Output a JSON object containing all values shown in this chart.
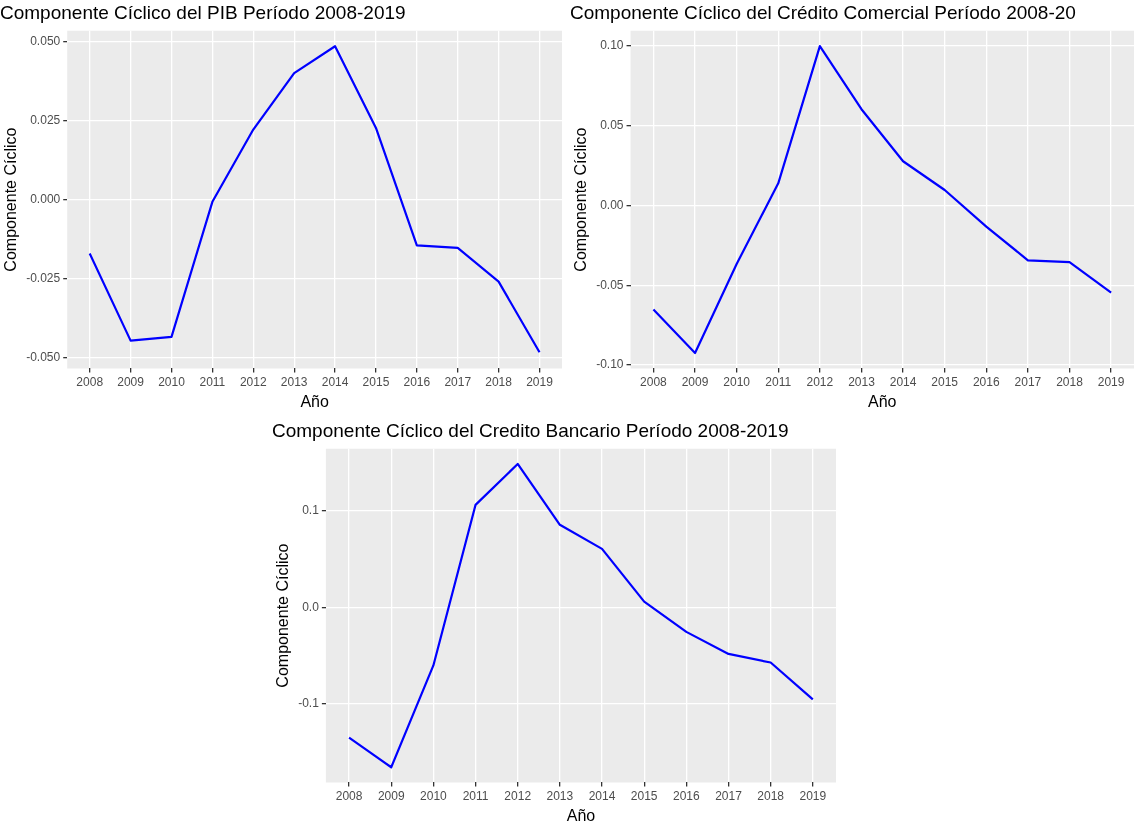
{
  "chart_data": [
    {
      "type": "line",
      "title": "Componente Cíclico del PIB Período 2008-2019",
      "xlabel": "Año",
      "ylabel": "Componente Cíclico",
      "x": [
        2008,
        2009,
        2010,
        2011,
        2012,
        2013,
        2014,
        2015,
        2016,
        2017,
        2018,
        2019
      ],
      "series": [
        {
          "color": "#0000ff",
          "values": [
            -0.0171,
            -0.0447,
            -0.0435,
            -0.0007,
            0.0222,
            0.0401,
            0.0486,
            0.0227,
            -0.0145,
            -0.0153,
            -0.026,
            -0.0484
          ]
        }
      ],
      "xlim": [
        2007.45,
        2019.55
      ],
      "xticks": [
        2008,
        2009,
        2010,
        2011,
        2012,
        2013,
        2014,
        2015,
        2016,
        2017,
        2018,
        2019
      ],
      "ylim": [
        -0.0535,
        0.0535
      ],
      "yticks": [
        {
          "value": -0.05,
          "label": "-0.050"
        },
        {
          "value": -0.025,
          "label": "-0.025"
        },
        {
          "value": 0,
          "label": "0.000"
        },
        {
          "value": 0.025,
          "label": "0.025"
        },
        {
          "value": 0.05,
          "label": "0.050"
        }
      ],
      "grid": true,
      "marker": "none"
    },
    {
      "type": "line",
      "title": "Componente Cíclico del Crédito Comercial Período 2008-20",
      "xlabel": "Año",
      "ylabel": "Componente Cíclico",
      "x": [
        2008,
        2009,
        2010,
        2011,
        2012,
        2013,
        2014,
        2015,
        2016,
        2017,
        2018,
        2019
      ],
      "series": [
        {
          "color": "#0000ff",
          "values": [
            -0.0652,
            -0.0925,
            -0.0367,
            0.0138,
            0.0997,
            0.0602,
            0.0276,
            0.0096,
            -0.0133,
            -0.0344,
            -0.0356,
            -0.0547
          ]
        }
      ],
      "xlim": [
        2007.45,
        2019.55
      ],
      "xticks": [
        2008,
        2009,
        2010,
        2011,
        2012,
        2013,
        2014,
        2015,
        2016,
        2017,
        2018,
        2019
      ],
      "ylim": [
        -0.1021,
        0.1093
      ],
      "yticks": [
        {
          "value": -0.1,
          "label": "-0.10"
        },
        {
          "value": -0.05,
          "label": "-0.05"
        },
        {
          "value": 0,
          "label": "0.00"
        },
        {
          "value": 0.05,
          "label": "0.05"
        },
        {
          "value": 0.1,
          "label": "0.10"
        }
      ],
      "grid": true,
      "marker": "none"
    },
    {
      "type": "line",
      "title": "Componente Cíclico del Credito Bancario Período 2008-2019",
      "xlabel": "Año",
      "ylabel": "Componente Cíclico",
      "x": [
        2008,
        2009,
        2010,
        2011,
        2012,
        2013,
        2014,
        2015,
        2016,
        2017,
        2018,
        2019
      ],
      "series": [
        {
          "color": "#0000ff",
          "values": [
            -0.1353,
            -0.166,
            -0.0603,
            0.1063,
            0.1488,
            0.0856,
            0.0606,
            0.0059,
            -0.0255,
            -0.0484,
            -0.0573,
            -0.0956
          ]
        }
      ],
      "xlim": [
        2007.45,
        2019.55
      ],
      "xticks": [
        2008,
        2009,
        2010,
        2011,
        2012,
        2013,
        2014,
        2015,
        2016,
        2017,
        2018,
        2019
      ],
      "ylim": [
        -0.1817,
        0.1645
      ],
      "yticks": [
        {
          "value": -0.1,
          "label": "-0.1"
        },
        {
          "value": 0,
          "label": "0.0"
        },
        {
          "value": 0.1,
          "label": "0.1"
        }
      ],
      "grid": true,
      "marker": "none"
    }
  ]
}
